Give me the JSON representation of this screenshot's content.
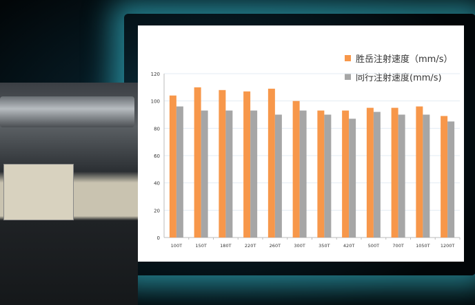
{
  "chart_data": {
    "type": "bar",
    "categories": [
      "100T",
      "150T",
      "180T",
      "220T",
      "260T",
      "300T",
      "350T",
      "420T",
      "500T",
      "700T",
      "1050T",
      "1200T"
    ],
    "series": [
      {
        "name": "胜岳注射速度（mm/s）",
        "color": "#f7974a",
        "values": [
          104,
          110,
          108,
          107,
          109,
          100,
          93,
          93,
          95,
          95,
          96,
          89
        ]
      },
      {
        "name": "同行注射速度(mm/s)",
        "color": "#a6a6a6",
        "values": [
          96,
          93,
          93,
          93,
          90,
          93,
          90,
          87,
          92,
          90,
          90,
          85
        ]
      }
    ],
    "yticks": [
      0,
      20,
      40,
      60,
      80,
      100,
      120
    ],
    "ylim": [
      0,
      120
    ],
    "grid": true,
    "legend": "top-right"
  }
}
